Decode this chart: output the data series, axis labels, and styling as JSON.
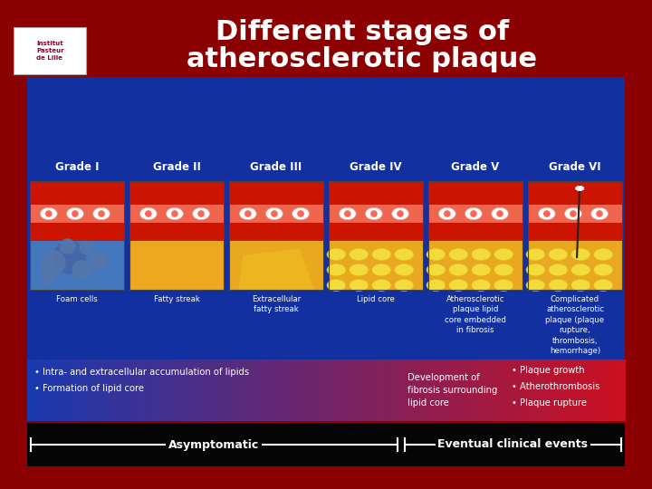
{
  "title_line1": "Different stages of",
  "title_line2": "atherosclerotic plaque",
  "title_color": "#FFFFFF",
  "bg_color": "#8B0000",
  "main_panel_color": "#1230A0",
  "black_bar_color": "#0A0A0A",
  "grades": [
    "Grade I",
    "Grade II",
    "Grade III",
    "Grade IV",
    "Grade V",
    "Grade VI"
  ],
  "grade_labels": [
    "Foam cells",
    "Fatty streak",
    "Extracellular\nfatty streak",
    "Lipid core",
    "Atherosclerotic\nplaque lipid\ncore embedded\nin fibrosis",
    "Complicated\natherosclerotic\nplaque (plaque\nrupture,\nthrombosis,\nhemorrhage)"
  ],
  "bullet_left": [
    "• Intra- and extracellular accumulation of lipids",
    "• Formation of lipid core"
  ],
  "bullet_mid": "Development of\nfibrosis surrounding\nlipid core",
  "bullet_right": [
    "• Plaque growth",
    "• Atherothrombosis",
    "• Plaque rupture"
  ],
  "asymptomatic_label": "Asymptomatic",
  "clinical_label": "Eventual clinical events",
  "logo_text": "Institut\nPasteur\nde Lille"
}
